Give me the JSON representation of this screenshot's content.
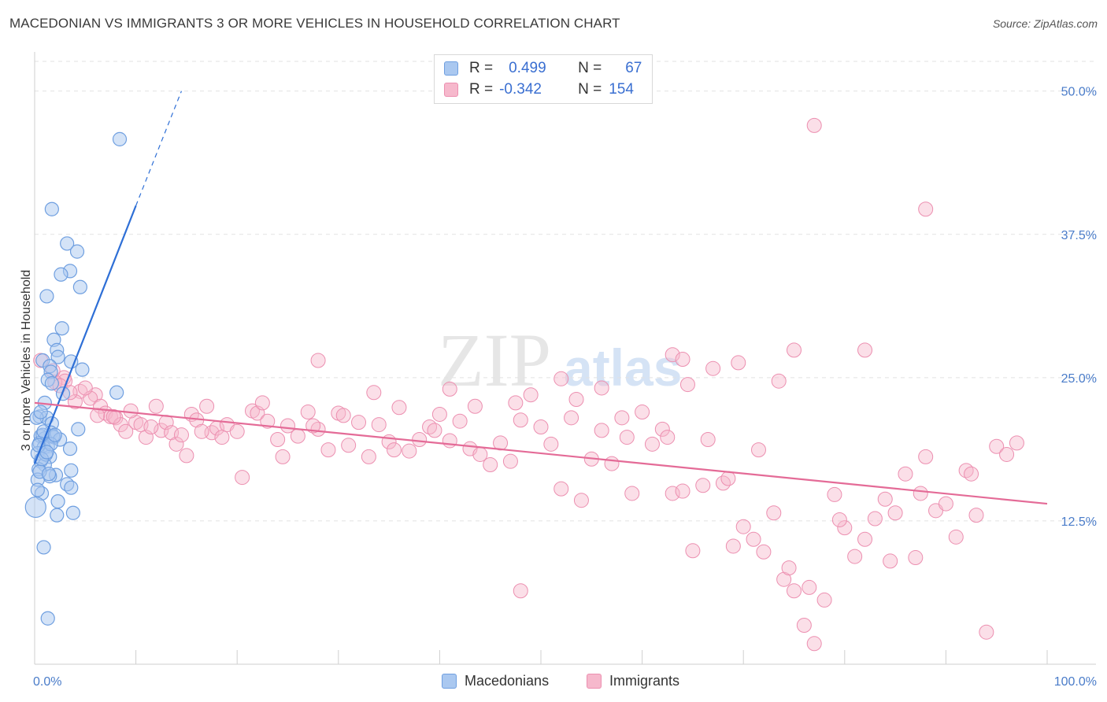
{
  "header": {
    "title": "MACEDONIAN VS IMMIGRANTS 3 OR MORE VEHICLES IN HOUSEHOLD CORRELATION CHART",
    "source": "Source: ZipAtlas.com"
  },
  "legend_top": {
    "rows": [
      {
        "r_label": "R =",
        "r_value": "0.499",
        "n_label": "N =",
        "n_value": "67"
      },
      {
        "r_label": "R =",
        "r_value": "-0.342",
        "n_label": "N =",
        "n_value": "154"
      }
    ]
  },
  "legend_bottom": {
    "items": [
      {
        "label": "Macedonians"
      },
      {
        "label": "Immigrants"
      }
    ]
  },
  "watermark": {
    "zip": "ZIP",
    "atlas": "atlas"
  },
  "colors": {
    "blue_fill": "#aac8f0",
    "blue_stroke": "#6f9fe0",
    "blue_line": "#2e6fd6",
    "pink_fill": "#f6b8cc",
    "pink_stroke": "#ec8fb0",
    "pink_line": "#e46b97",
    "tick_text": "#4a7cc9",
    "grid": "#e2e2e2"
  },
  "chart_data": {
    "type": "scatter",
    "title": "MACEDONIAN VS IMMIGRANTS 3 OR MORE VEHICLES IN HOUSEHOLD CORRELATION CHART",
    "xlabel": "",
    "ylabel": "3 or more Vehicles in Household",
    "xlim": [
      0,
      100
    ],
    "ylim": [
      0,
      53
    ],
    "x_tick_labels": [
      "0.0%",
      "100.0%"
    ],
    "y_ticks": [
      12.5,
      25.0,
      37.5,
      50.0
    ],
    "y_tick_labels": [
      "12.5%",
      "25.0%",
      "37.5%",
      "50.0%"
    ],
    "grid": true,
    "series": [
      {
        "name": "Macedonians",
        "r": 0.499,
        "n": 67,
        "trend": {
          "x0": 0.0,
          "y0": 17.5,
          "x1": 10.0,
          "y1": 40.0,
          "dash_to_x": 14.5,
          "dash_to_y": 50.0
        },
        "points": [
          [
            8.4,
            45.8
          ],
          [
            1.7,
            39.7
          ],
          [
            3.2,
            36.7
          ],
          [
            4.2,
            36.0
          ],
          [
            3.5,
            34.3
          ],
          [
            2.6,
            34.0
          ],
          [
            4.5,
            32.9
          ],
          [
            1.2,
            32.1
          ],
          [
            2.7,
            29.3
          ],
          [
            1.9,
            28.3
          ],
          [
            2.2,
            27.4
          ],
          [
            2.3,
            26.8
          ],
          [
            0.8,
            26.5
          ],
          [
            3.6,
            26.4
          ],
          [
            1.5,
            26.0
          ],
          [
            4.7,
            25.7
          ],
          [
            1.6,
            25.5
          ],
          [
            1.3,
            24.8
          ],
          [
            1.7,
            24.5
          ],
          [
            8.1,
            23.7
          ],
          [
            2.8,
            23.6
          ],
          [
            1.0,
            22.8
          ],
          [
            0.5,
            21.6
          ],
          [
            1.2,
            21.5
          ],
          [
            1.7,
            21.0
          ],
          [
            4.3,
            20.5
          ],
          [
            1.6,
            20.2
          ],
          [
            0.6,
            19.9
          ],
          [
            1.9,
            19.8
          ],
          [
            1.0,
            19.7
          ],
          [
            0.5,
            19.3
          ],
          [
            1.3,
            19.0
          ],
          [
            0.9,
            18.9
          ],
          [
            3.5,
            18.8
          ],
          [
            0.3,
            18.4
          ],
          [
            1.5,
            18.1
          ],
          [
            0.6,
            17.7
          ],
          [
            1.0,
            17.4
          ],
          [
            0.4,
            17.0
          ],
          [
            3.6,
            16.9
          ],
          [
            2.1,
            16.5
          ],
          [
            1.5,
            16.4
          ],
          [
            0.3,
            16.1
          ],
          [
            3.2,
            15.7
          ],
          [
            3.6,
            15.4
          ],
          [
            0.7,
            14.9
          ],
          [
            2.3,
            14.2
          ],
          [
            0.1,
            13.7
          ],
          [
            3.8,
            13.2
          ],
          [
            2.2,
            13.0
          ],
          [
            0.9,
            10.2
          ],
          [
            1.3,
            4.0
          ],
          [
            1.8,
            19.9
          ],
          [
            0.8,
            20.0
          ],
          [
            0.2,
            21.5
          ],
          [
            2.5,
            19.6
          ],
          [
            0.5,
            16.8
          ],
          [
            1.1,
            18.3
          ],
          [
            0.4,
            19.1
          ],
          [
            1.6,
            19.2
          ],
          [
            0.7,
            17.9
          ],
          [
            0.9,
            20.3
          ],
          [
            1.4,
            16.6
          ],
          [
            2.0,
            20.0
          ],
          [
            0.3,
            15.2
          ],
          [
            1.2,
            18.5
          ],
          [
            0.6,
            22.0
          ]
        ]
      },
      {
        "name": "Immigrants",
        "r": -0.342,
        "n": 154,
        "trend": {
          "x0": 0.0,
          "y0": 22.8,
          "x1": 100.0,
          "y1": 14.0
        },
        "points": [
          [
            77.0,
            47.0
          ],
          [
            88.0,
            39.7
          ],
          [
            0.6,
            26.5
          ],
          [
            28.0,
            26.5
          ],
          [
            52.0,
            24.9
          ],
          [
            56.0,
            24.1
          ],
          [
            41.0,
            24.0
          ],
          [
            63.0,
            27.0
          ],
          [
            2.9,
            25.0
          ],
          [
            6.0,
            23.5
          ],
          [
            4.5,
            23.8
          ],
          [
            3.0,
            24.7
          ],
          [
            2.0,
            24.6
          ],
          [
            1.8,
            25.6
          ],
          [
            4.0,
            22.9
          ],
          [
            5.5,
            23.2
          ],
          [
            6.5,
            22.5
          ],
          [
            7.0,
            21.9
          ],
          [
            7.5,
            21.6
          ],
          [
            8.0,
            21.5
          ],
          [
            8.5,
            20.9
          ],
          [
            9.0,
            20.3
          ],
          [
            10.0,
            21.1
          ],
          [
            10.5,
            20.9
          ],
          [
            11.0,
            19.8
          ],
          [
            12.0,
            22.5
          ],
          [
            12.5,
            20.4
          ],
          [
            13.0,
            21.1
          ],
          [
            13.5,
            20.2
          ],
          [
            14.0,
            19.2
          ],
          [
            14.5,
            20.0
          ],
          [
            15.0,
            18.2
          ],
          [
            15.5,
            21.8
          ],
          [
            16.0,
            21.3
          ],
          [
            17.0,
            22.5
          ],
          [
            17.5,
            20.2
          ],
          [
            18.0,
            20.6
          ],
          [
            18.5,
            19.8
          ],
          [
            19.0,
            20.9
          ],
          [
            20.0,
            20.3
          ],
          [
            20.5,
            16.3
          ],
          [
            21.5,
            22.1
          ],
          [
            22.0,
            21.9
          ],
          [
            23.0,
            21.2
          ],
          [
            24.0,
            19.6
          ],
          [
            24.5,
            18.1
          ],
          [
            25.0,
            20.8
          ],
          [
            26.0,
            19.9
          ],
          [
            27.0,
            22.0
          ],
          [
            28.0,
            20.5
          ],
          [
            29.0,
            18.7
          ],
          [
            30.0,
            21.9
          ],
          [
            31.0,
            19.1
          ],
          [
            32.0,
            21.1
          ],
          [
            33.0,
            18.1
          ],
          [
            34.0,
            20.9
          ],
          [
            35.0,
            19.4
          ],
          [
            36.0,
            22.4
          ],
          [
            37.0,
            18.6
          ],
          [
            38.0,
            19.6
          ],
          [
            39.0,
            20.7
          ],
          [
            40.0,
            21.8
          ],
          [
            41.0,
            19.5
          ],
          [
            42.0,
            21.2
          ],
          [
            43.0,
            18.8
          ],
          [
            44.0,
            18.3
          ],
          [
            45.0,
            17.4
          ],
          [
            46.0,
            19.3
          ],
          [
            47.0,
            17.7
          ],
          [
            48.0,
            21.3
          ],
          [
            49.0,
            23.5
          ],
          [
            50.0,
            20.7
          ],
          [
            51.0,
            19.2
          ],
          [
            52.0,
            15.3
          ],
          [
            53.0,
            21.5
          ],
          [
            54.0,
            14.3
          ],
          [
            55.0,
            17.9
          ],
          [
            56.0,
            20.4
          ],
          [
            57.0,
            17.5
          ],
          [
            58.0,
            21.5
          ],
          [
            59.0,
            14.9
          ],
          [
            60.0,
            22.0
          ],
          [
            61.0,
            19.2
          ],
          [
            62.0,
            20.5
          ],
          [
            63.0,
            14.9
          ],
          [
            64.0,
            15.1
          ],
          [
            65.0,
            9.9
          ],
          [
            66.0,
            15.6
          ],
          [
            67.0,
            25.8
          ],
          [
            68.0,
            15.8
          ],
          [
            69.0,
            10.3
          ],
          [
            70.0,
            12.0
          ],
          [
            71.0,
            10.9
          ],
          [
            72.0,
            9.8
          ],
          [
            73.0,
            13.2
          ],
          [
            74.0,
            7.4
          ],
          [
            75.0,
            6.4
          ],
          [
            76.0,
            3.4
          ],
          [
            77.0,
            1.8
          ],
          [
            78.0,
            5.6
          ],
          [
            79.0,
            14.8
          ],
          [
            80.0,
            11.9
          ],
          [
            81.0,
            9.4
          ],
          [
            82.0,
            10.9
          ],
          [
            83.0,
            12.7
          ],
          [
            84.0,
            14.4
          ],
          [
            85.0,
            13.2
          ],
          [
            86.0,
            16.6
          ],
          [
            87.0,
            9.3
          ],
          [
            88.0,
            18.1
          ],
          [
            89.0,
            13.4
          ],
          [
            90.0,
            14.0
          ],
          [
            91.0,
            11.1
          ],
          [
            92.0,
            16.9
          ],
          [
            93.0,
            13.0
          ],
          [
            94.0,
            2.8
          ],
          [
            95.0,
            19.0
          ],
          [
            96.0,
            18.3
          ],
          [
            97.0,
            19.3
          ],
          [
            64.5,
            24.4
          ],
          [
            69.5,
            26.3
          ],
          [
            73.5,
            24.7
          ],
          [
            64.0,
            26.6
          ],
          [
            48.0,
            6.4
          ],
          [
            82.0,
            27.4
          ],
          [
            75.0,
            27.4
          ],
          [
            2.5,
            24.3
          ],
          [
            3.5,
            23.7
          ],
          [
            5.0,
            24.1
          ],
          [
            6.2,
            21.7
          ],
          [
            7.8,
            21.6
          ],
          [
            9.5,
            22.1
          ],
          [
            11.5,
            20.7
          ],
          [
            16.5,
            20.3
          ],
          [
            22.5,
            22.8
          ],
          [
            27.5,
            20.8
          ],
          [
            30.5,
            21.7
          ],
          [
            33.5,
            23.7
          ],
          [
            35.5,
            18.7
          ],
          [
            39.5,
            20.4
          ],
          [
            43.5,
            22.5
          ],
          [
            47.5,
            22.8
          ],
          [
            53.5,
            23.1
          ],
          [
            58.5,
            19.8
          ],
          [
            62.5,
            19.8
          ],
          [
            66.5,
            19.6
          ],
          [
            68.5,
            16.2
          ],
          [
            71.5,
            18.7
          ],
          [
            74.5,
            8.4
          ],
          [
            76.5,
            6.7
          ],
          [
            79.5,
            12.6
          ],
          [
            84.5,
            9.0
          ],
          [
            87.5,
            14.9
          ],
          [
            92.5,
            16.6
          ]
        ]
      }
    ]
  }
}
